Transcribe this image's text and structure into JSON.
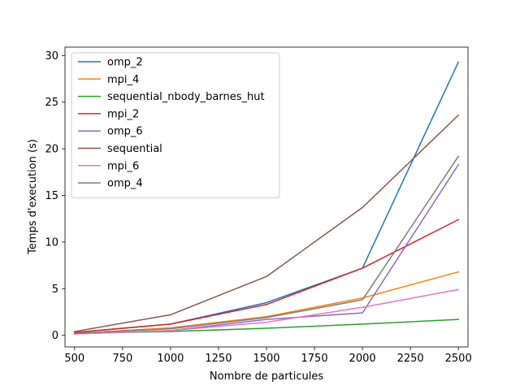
{
  "chart_data": {
    "type": "line",
    "title": "",
    "xlabel": "Nombre de particules",
    "ylabel": "Temps d'execution (s)",
    "xlim": [
      450,
      2550
    ],
    "ylim": [
      -1.25,
      30.9
    ],
    "x_ticks": [
      500,
      750,
      1000,
      1250,
      1500,
      1750,
      2000,
      2250,
      2500
    ],
    "y_ticks": [
      0,
      5,
      10,
      15,
      20,
      25,
      30
    ],
    "grid": false,
    "legend_position": "upper-left",
    "x": [
      500,
      1000,
      1500,
      2000,
      2500
    ],
    "series": [
      {
        "name": "omp_2",
        "color": "#1f77b4",
        "values": [
          0.3,
          1.2,
          3.5,
          7.2,
          29.3
        ]
      },
      {
        "name": "mpi_4",
        "color": "#ff7f0e",
        "values": [
          0.2,
          0.8,
          2.0,
          4.0,
          6.8
        ]
      },
      {
        "name": "sequential_nbody_barnes_hut",
        "color": "#2ca02c",
        "values": [
          0.2,
          0.4,
          0.75,
          1.2,
          1.7
        ]
      },
      {
        "name": "mpi_2",
        "color": "#d62728",
        "values": [
          0.3,
          1.2,
          3.3,
          7.2,
          12.4
        ]
      },
      {
        "name": "omp_6",
        "color": "#9467bd",
        "values": [
          0.15,
          0.5,
          1.7,
          2.4,
          18.3
        ]
      },
      {
        "name": "sequential",
        "color": "#8c564b",
        "values": [
          0.4,
          2.2,
          6.3,
          13.7,
          23.6
        ]
      },
      {
        "name": "mpi_6",
        "color": "#e377c2",
        "values": [
          0.15,
          0.5,
          1.4,
          3.0,
          4.9
        ]
      },
      {
        "name": "omp_4",
        "color": "#7f7f7f",
        "values": [
          0.2,
          0.7,
          1.9,
          3.8,
          19.2
        ]
      }
    ]
  }
}
